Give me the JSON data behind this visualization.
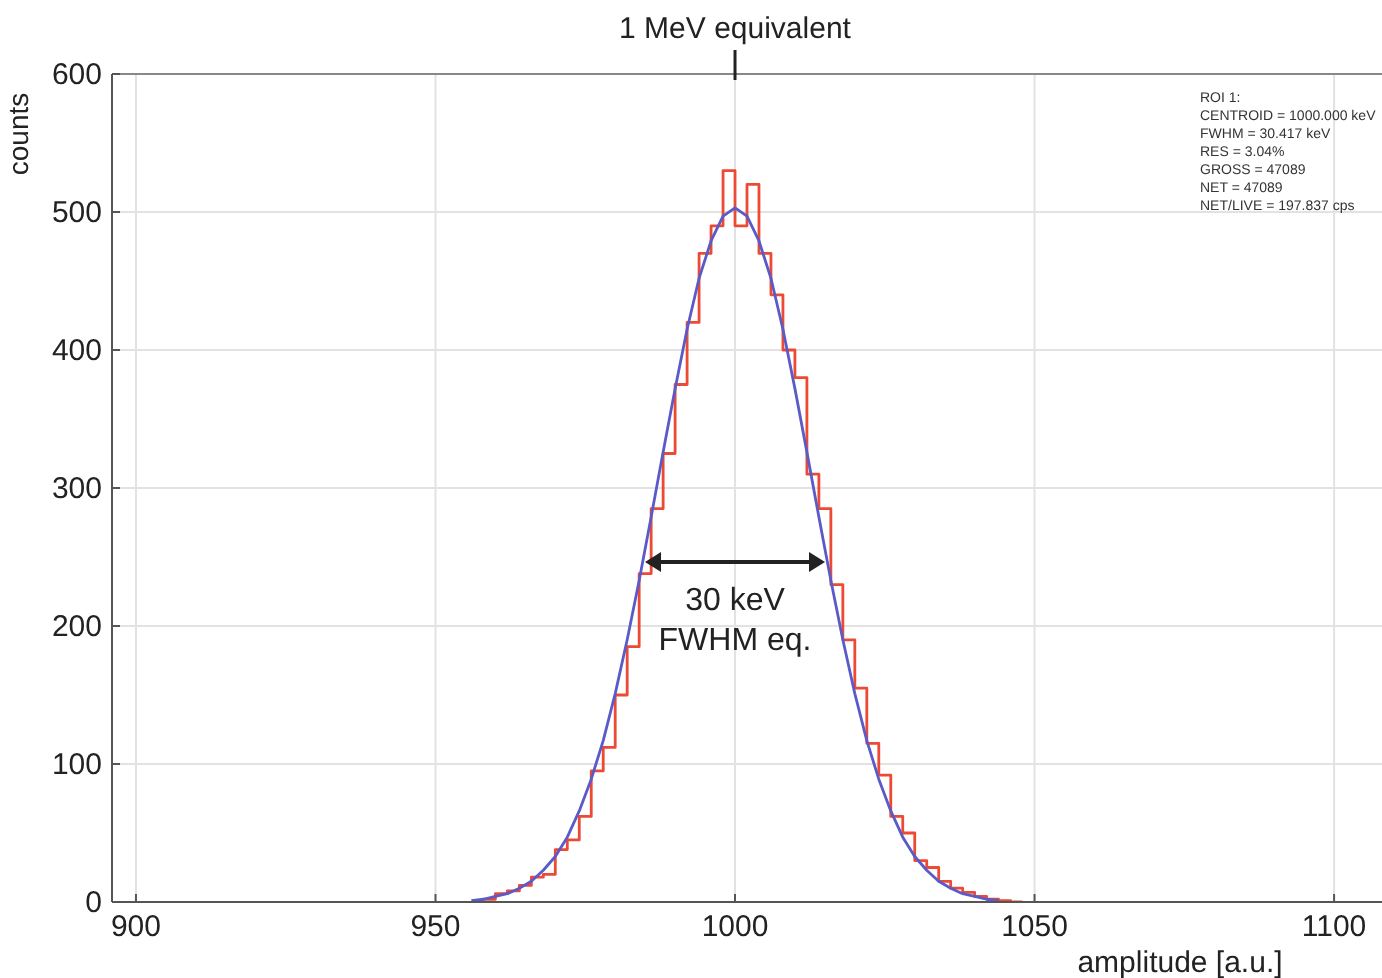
{
  "chart_data": {
    "type": "line",
    "xlabel": "amplitude [a.u.]",
    "ylabel": "counts",
    "xlim": [
      896,
      1108
    ],
    "ylim": [
      0,
      600
    ],
    "xticks": [
      900,
      950,
      1000,
      1050,
      1100
    ],
    "yticks": [
      0,
      100,
      200,
      300,
      400,
      500,
      600
    ],
    "grid": true,
    "line_style": "solid",
    "marker": "none",
    "series": [
      {
        "type": "step",
        "color": "#ec4a34",
        "x": [
          956,
          958,
          960,
          962,
          964,
          966,
          968,
          970,
          972,
          974,
          976,
          978,
          980,
          982,
          984,
          986,
          988,
          990,
          992,
          994,
          996,
          998,
          1000,
          1002,
          1004,
          1006,
          1008,
          1010,
          1012,
          1014,
          1016,
          1018,
          1020,
          1022,
          1024,
          1026,
          1028,
          1030,
          1032,
          1034,
          1036,
          1038,
          1040,
          1042,
          1044,
          1046,
          1048
        ],
        "values": [
          0,
          2,
          6,
          8,
          12,
          18,
          20,
          38,
          45,
          62,
          95,
          112,
          150,
          185,
          238,
          285,
          325,
          375,
          420,
          470,
          490,
          530,
          490,
          520,
          470,
          440,
          400,
          380,
          310,
          285,
          230,
          190,
          155,
          115,
          92,
          62,
          50,
          30,
          25,
          15,
          10,
          7,
          4,
          2,
          1,
          0,
          0
        ]
      },
      {
        "color": "#5a5ac8",
        "x": [
          956,
          958,
          960,
          962,
          964,
          966,
          968,
          970,
          972,
          974,
          976,
          978,
          980,
          982,
          984,
          986,
          988,
          990,
          992,
          994,
          996,
          998,
          1000,
          1002,
          1004,
          1006,
          1008,
          1010,
          1012,
          1014,
          1016,
          1018,
          1020,
          1022,
          1024,
          1026,
          1028,
          1030,
          1032,
          1034,
          1036,
          1038,
          1040,
          1042,
          1044
        ],
        "values": [
          1,
          2,
          4,
          6,
          10,
          15,
          23,
          33,
          47,
          66,
          89,
          117,
          151,
          190,
          233,
          279,
          326,
          372,
          415,
          452,
          479,
          497,
          503,
          497,
          479,
          452,
          415,
          372,
          326,
          279,
          233,
          190,
          151,
          117,
          89,
          66,
          47,
          33,
          23,
          15,
          10,
          6,
          4,
          2,
          1
        ]
      }
    ],
    "annotations": [
      {
        "text": "1 MeV equivalent",
        "x": 1000
      },
      "30 keV\nFWHM eq.",
      "ROI 1:",
      "CENTROID = 1000.000 keV",
      "FWHM = 30.417 keV",
      "RES = 3.04%",
      "GROSS = 47089",
      "NET = 47089",
      "NET/LIVE = 197.837 cps"
    ]
  }
}
